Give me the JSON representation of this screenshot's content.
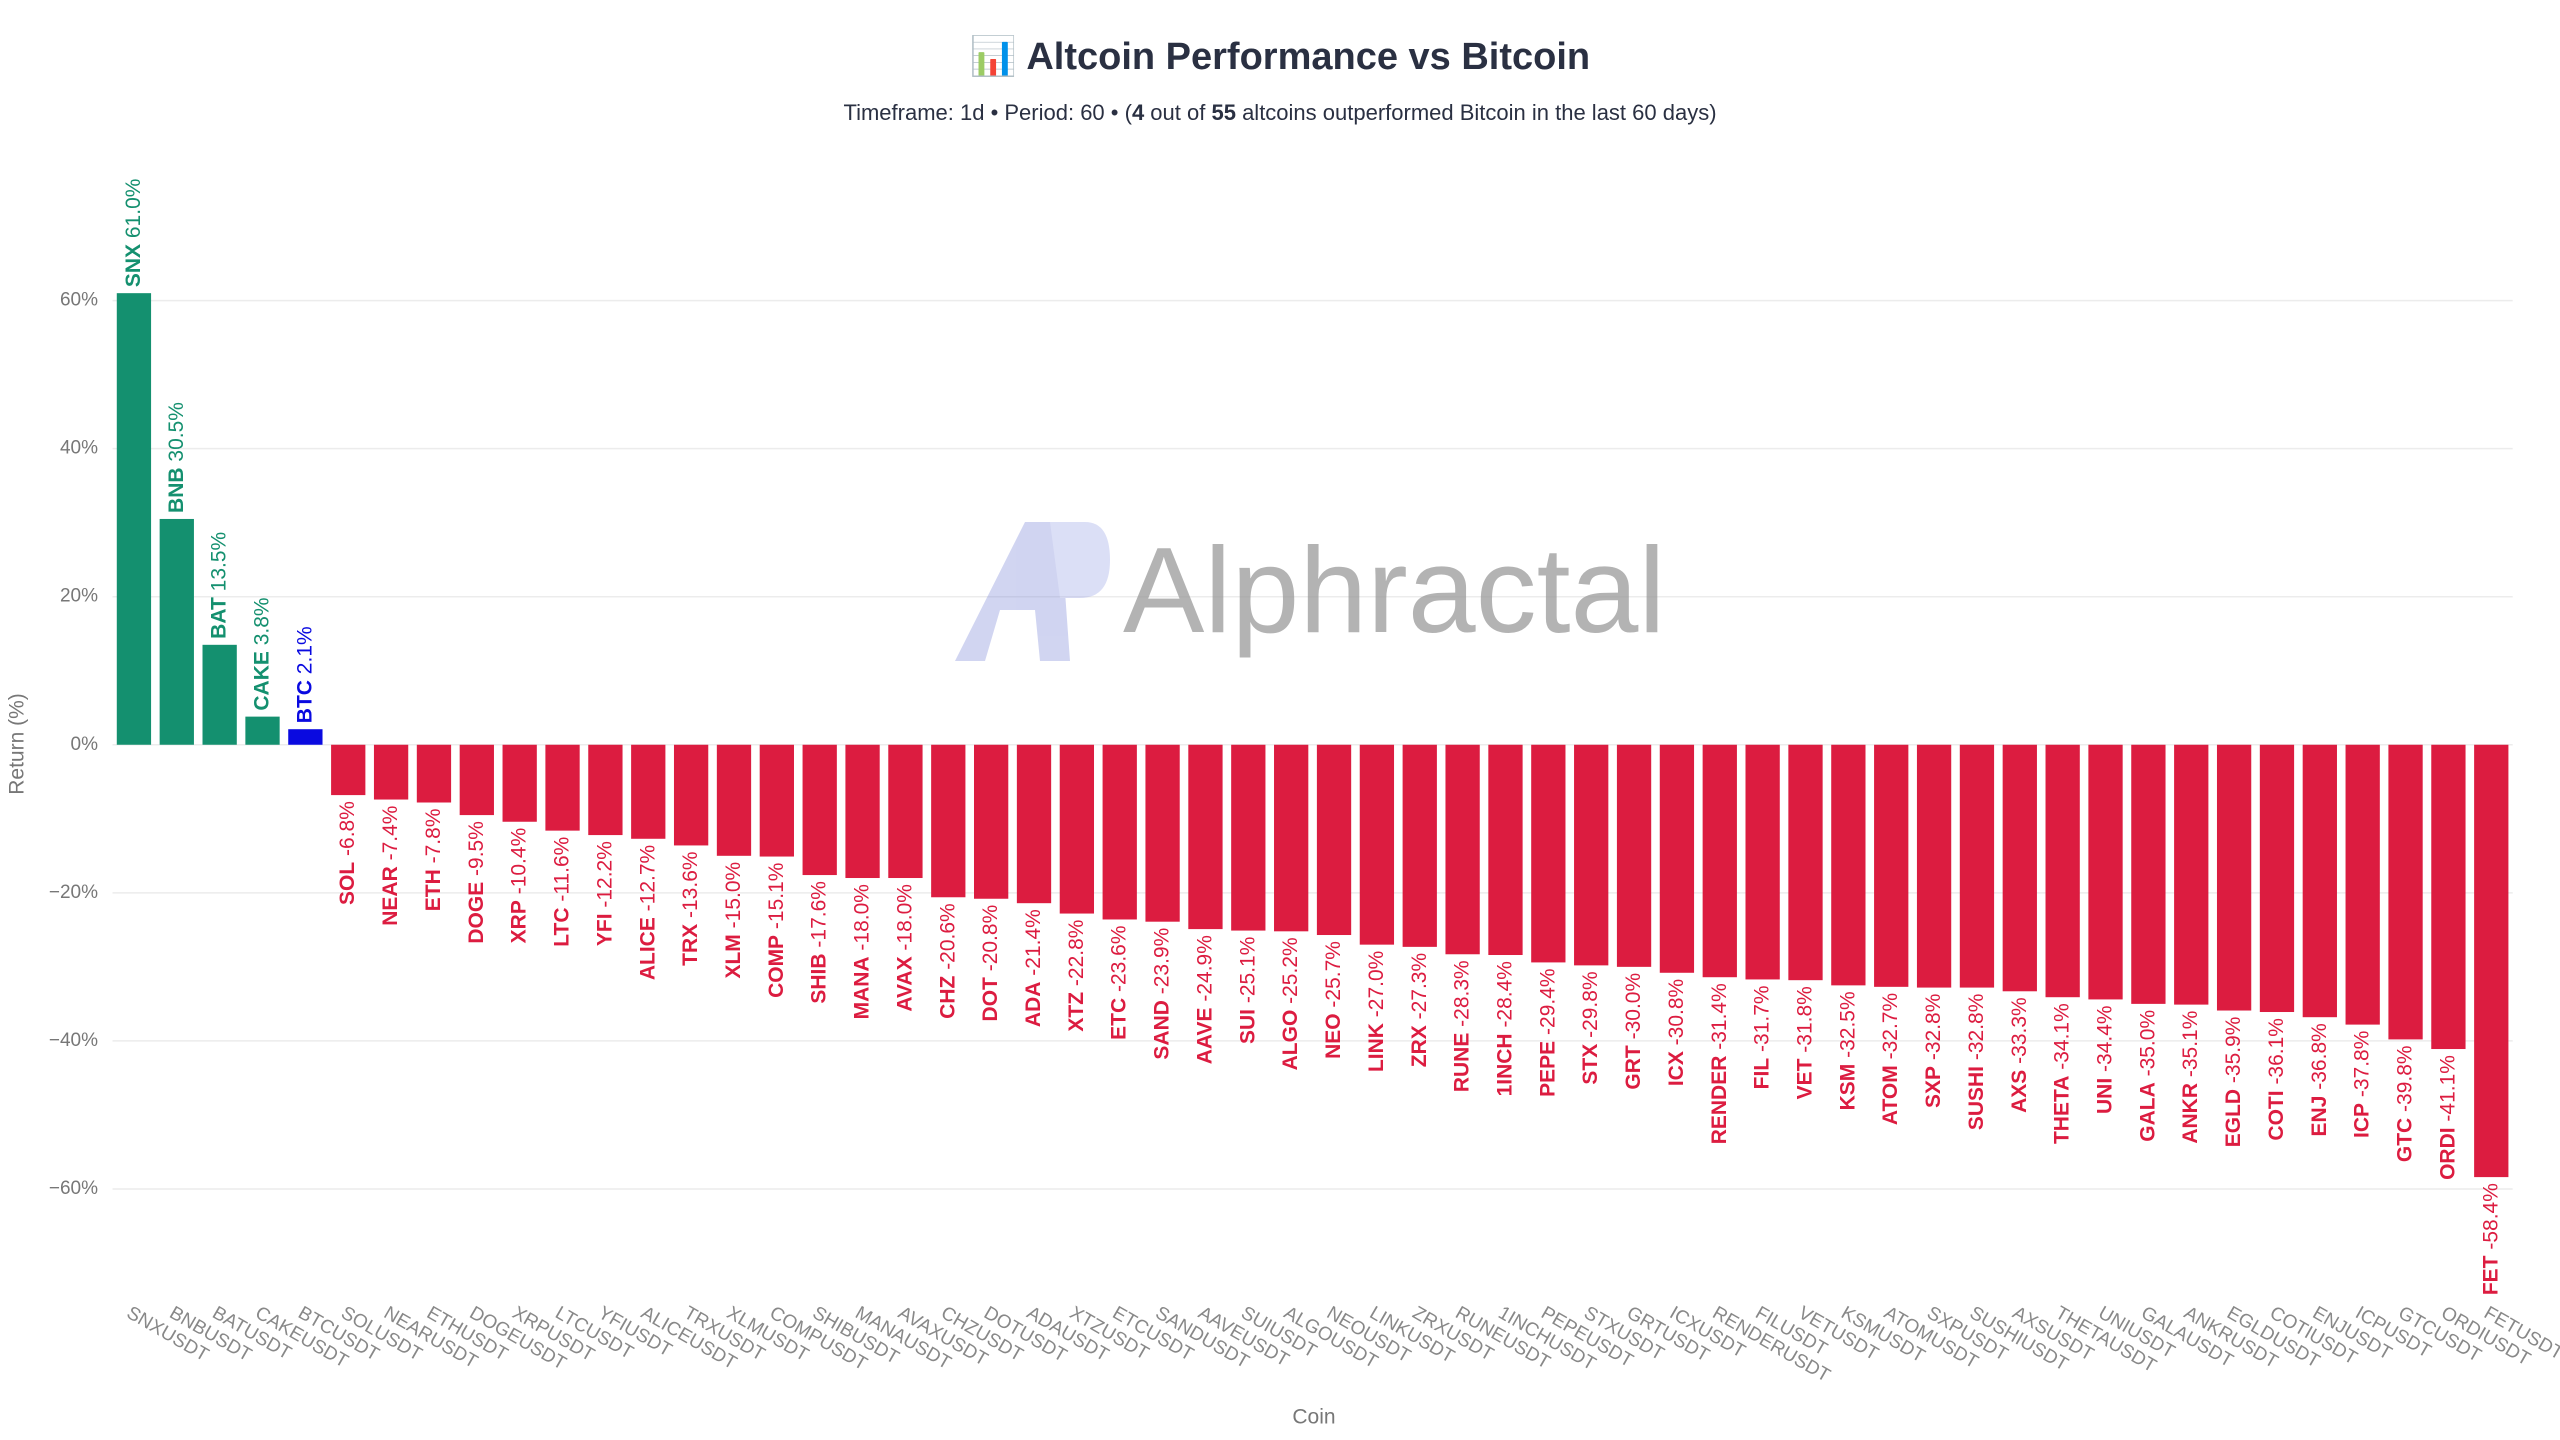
{
  "chart_data": {
    "type": "bar",
    "title": "📊 Altcoin Performance vs Bitcoin",
    "subtitle": [
      "Timeframe: 1d  •  Period: 60  •  (",
      "4",
      " out of ",
      "55",
      " altcoins outperformed Bitcoin in the last 60 days)"
    ],
    "watermark": "Alphractal",
    "x_label": "Coin",
    "y_label": "Return (%)",
    "categories": [
      "SNXUSDT",
      "BNBUSDT",
      "BATUSDT",
      "CAKEUSDT",
      "BTCUSDT",
      "SOLUSDT",
      "NEARUSDT",
      "ETHUSDT",
      "DOGEUSDT",
      "XRPUSDT",
      "LTCUSDT",
      "YFIUSDT",
      "ALICEUSDT",
      "TRXUSDT",
      "XLMUSDT",
      "COMPUSDT",
      "SHIBUSDT",
      "MANAUSDT",
      "AVAXUSDT",
      "CHZUSDT",
      "DOTUSDT",
      "ADAUSDT",
      "XTZUSDT",
      "ETCUSDT",
      "SANDUSDT",
      "AAVEUSDT",
      "SUIUSDT",
      "ALGOUSDT",
      "NEOUSDT",
      "LINKUSDT",
      "ZRXUSDT",
      "RUNEUSDT",
      "1INCHUSDT",
      "PEPEUSDT",
      "STXUSDT",
      "GRTUSDT",
      "ICXUSDT",
      "RENDERUSDT",
      "FILUSDT",
      "VETUSDT",
      "KSMUSDT",
      "ATOMUSDT",
      "SXPUSDT",
      "SUSHIUSDT",
      "AXSUSDT",
      "THETAUSDT",
      "UNIUSDT",
      "GALAUSDT",
      "ANKRUSDT",
      "EGLDUSDT",
      "COTIUSDT",
      "ENJUSDT",
      "ICPUSDT",
      "GTCUSDT",
      "ORDIUSDT",
      "FETUSDT"
    ],
    "short_names": [
      "SNX",
      "BNB",
      "BAT",
      "CAKE",
      "BTC",
      "SOL",
      "NEAR",
      "ETH",
      "DOGE",
      "XRP",
      "LTC",
      "YFI",
      "ALICE",
      "TRX",
      "XLM",
      "COMP",
      "SHIB",
      "MANA",
      "AVAX",
      "CHZ",
      "DOT",
      "ADA",
      "XTZ",
      "ETC",
      "SAND",
      "AAVE",
      "SUI",
      "ALGO",
      "NEO",
      "LINK",
      "ZRX",
      "RUNE",
      "1INCH",
      "PEPE",
      "STX",
      "GRT",
      "ICX",
      "RENDER",
      "FIL",
      "VET",
      "KSM",
      "ATOM",
      "SXP",
      "SUSHI",
      "AXS",
      "THETA",
      "UNI",
      "GALA",
      "ANKR",
      "EGLD",
      "COTI",
      "ENJ",
      "ICP",
      "GTC",
      "ORDI",
      "FET"
    ],
    "values": [
      61.0,
      30.5,
      13.5,
      3.8,
      2.1,
      -6.8,
      -7.4,
      -7.8,
      -9.5,
      -10.4,
      -11.6,
      -12.2,
      -12.7,
      -13.6,
      -15.0,
      -15.1,
      -17.6,
      -18.0,
      -18.0,
      -20.6,
      -20.8,
      -21.4,
      -22.8,
      -23.6,
      -23.9,
      -24.9,
      -25.1,
      -25.2,
      -25.7,
      -27.0,
      -27.3,
      -28.3,
      -28.4,
      -29.4,
      -29.8,
      -30.0,
      -30.8,
      -31.4,
      -31.7,
      -31.8,
      -32.5,
      -32.7,
      -32.8,
      -32.8,
      -33.3,
      -34.1,
      -34.4,
      -35.0,
      -35.1,
      -35.9,
      -36.1,
      -36.8,
      -37.8,
      -39.8,
      -41.1,
      -58.4
    ],
    "value_labels": [
      "61.0%",
      "30.5%",
      "13.5%",
      "3.8%",
      "2.1%",
      "-6.8%",
      "-7.4%",
      "-7.8%",
      "-9.5%",
      "-10.4%",
      "-11.6%",
      "-12.2%",
      "-12.7%",
      "-13.6%",
      "-15.0%",
      "-15.1%",
      "-17.6%",
      "-18.0%",
      "-18.0%",
      "-20.6%",
      "-20.8%",
      "-21.4%",
      "-22.8%",
      "-23.6%",
      "-23.9%",
      "-24.9%",
      "-25.1%",
      "-25.2%",
      "-25.7%",
      "-27.0%",
      "-27.3%",
      "-28.3%",
      "-28.4%",
      "-29.4%",
      "-29.8%",
      "-30.0%",
      "-30.8%",
      "-31.4%",
      "-31.7%",
      "-31.8%",
      "-32.5%",
      "-32.7%",
      "-32.8%",
      "-32.8%",
      "-33.3%",
      "-34.1%",
      "-34.4%",
      "-35.0%",
      "-35.1%",
      "-35.9%",
      "-36.1%",
      "-36.8%",
      "-37.8%",
      "-39.8%",
      "-41.1%",
      "-58.4%"
    ],
    "color_up": "#14906f",
    "color_down": "#dc1c40",
    "highlight": "BTCUSDT",
    "highlight_color": "#0a0ae0",
    "ylim": [
      -75,
      80
    ],
    "yticks": [
      {
        "value": -60,
        "label": "−60%"
      },
      {
        "value": -40,
        "label": "−40%"
      },
      {
        "value": -20,
        "label": "−20%"
      },
      {
        "value": 0,
        "label": "0%"
      },
      {
        "value": 20,
        "label": "20%"
      },
      {
        "value": 40,
        "label": "40%"
      },
      {
        "value": 60,
        "label": "60%"
      }
    ],
    "grid": true
  }
}
